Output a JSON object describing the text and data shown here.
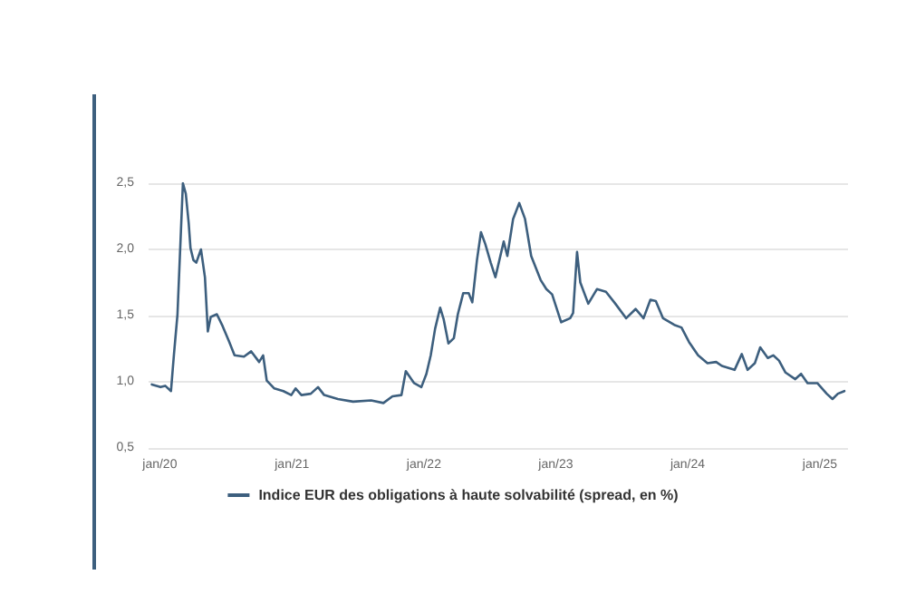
{
  "chart_data": {
    "type": "line",
    "xlim": [
      "2019-12-01",
      "2025-03-20"
    ],
    "ylim": [
      0.5,
      2.5
    ],
    "yticks": [
      {
        "value": 0.5,
        "label": "0,5"
      },
      {
        "value": 1,
        "label": "1,0"
      },
      {
        "value": 1.5,
        "label": "1,5"
      },
      {
        "value": 2,
        "label": "2,0"
      },
      {
        "value": 2.5,
        "label": "2,5"
      }
    ],
    "xticks": [
      {
        "value": "2020-01",
        "label": "jan/20"
      },
      {
        "value": "2021-01",
        "label": "jan/21"
      },
      {
        "value": "2022-01",
        "label": "jan/22"
      },
      {
        "value": "2023-01",
        "label": "jan/23"
      },
      {
        "value": "2024-01",
        "label": "jan/24"
      },
      {
        "value": "2025-01",
        "label": "jan/25"
      }
    ],
    "grid": "y",
    "legend": "bottom",
    "marker": "none",
    "line_style": "solid",
    "series": [
      {
        "name": "Indice EUR des obligations à haute solvabilité (spread, en %)",
        "color": "#3d5f7e",
        "x": [
          "2019-12-10",
          "2020-01-03",
          "2020-01-16",
          "2020-02-01",
          "2020-02-09",
          "2020-02-19",
          "2020-03-05",
          "2020-03-13",
          "2020-03-21",
          "2020-03-26",
          "2020-04-03",
          "2020-04-11",
          "2020-04-24",
          "2020-05-05",
          "2020-05-13",
          "2020-05-21",
          "2020-06-07",
          "2020-06-23",
          "2020-07-10",
          "2020-07-26",
          "2020-08-21",
          "2020-09-10",
          "2020-10-02",
          "2020-10-13",
          "2020-10-23",
          "2020-11-13",
          "2020-12-08",
          "2020-12-30",
          "2021-01-11",
          "2021-01-27",
          "2021-02-22",
          "2021-03-14",
          "2021-03-31",
          "2021-05-08",
          "2021-06-19",
          "2021-08-08",
          "2021-09-11",
          "2021-10-06",
          "2021-10-31",
          "2021-11-12",
          "2021-12-05",
          "2021-12-25",
          "2022-01-08",
          "2022-01-20",
          "2022-02-01",
          "2022-02-15",
          "2022-02-25",
          "2022-03-10",
          "2022-03-25",
          "2022-04-05",
          "2022-04-20",
          "2022-05-05",
          "2022-05-15",
          "2022-05-28",
          "2022-06-08",
          "2022-06-20",
          "2022-07-05",
          "2022-07-18",
          "2022-08-10",
          "2022-08-20",
          "2022-09-05",
          "2022-09-22",
          "2022-10-08",
          "2022-10-25",
          "2022-11-20",
          "2022-12-06",
          "2022-12-22",
          "2023-01-16",
          "2023-02-10",
          "2023-02-18",
          "2023-03-01",
          "2023-03-10",
          "2023-04-01",
          "2023-04-25",
          "2023-05-20",
          "2023-06-15",
          "2023-07-15",
          "2023-08-10",
          "2023-09-01",
          "2023-09-20",
          "2023-10-05",
          "2023-10-25",
          "2023-11-25",
          "2023-12-15",
          "2024-01-05",
          "2024-01-30",
          "2024-02-25",
          "2024-03-20",
          "2024-04-05",
          "2024-05-10",
          "2024-05-30",
          "2024-06-15",
          "2024-07-05",
          "2024-07-20",
          "2024-08-10",
          "2024-08-25",
          "2024-09-10",
          "2024-09-28",
          "2024-10-25",
          "2024-11-10",
          "2024-11-28",
          "2024-12-25",
          "2025-01-20",
          "2025-02-05",
          "2025-02-20",
          "2025-03-10"
        ],
        "values": [
          0.98,
          0.96,
          0.97,
          0.93,
          1.2,
          1.51,
          2.5,
          2.42,
          2.2,
          2.01,
          1.92,
          1.9,
          2.0,
          1.79,
          1.38,
          1.49,
          1.51,
          1.42,
          1.31,
          1.2,
          1.19,
          1.23,
          1.15,
          1.2,
          1.01,
          0.95,
          0.93,
          0.9,
          0.95,
          0.9,
          0.91,
          0.96,
          0.9,
          0.87,
          0.85,
          0.86,
          0.84,
          0.89,
          0.9,
          1.08,
          0.99,
          0.96,
          1.06,
          1.2,
          1.4,
          1.56,
          1.47,
          1.29,
          1.33,
          1.51,
          1.67,
          1.67,
          1.6,
          1.92,
          2.13,
          2.04,
          1.9,
          1.79,
          2.06,
          1.95,
          2.23,
          2.35,
          2.23,
          1.95,
          1.77,
          1.7,
          1.66,
          1.45,
          1.48,
          1.52,
          1.98,
          1.75,
          1.59,
          1.7,
          1.68,
          1.59,
          1.48,
          1.55,
          1.48,
          1.62,
          1.61,
          1.48,
          1.43,
          1.41,
          1.3,
          1.2,
          1.14,
          1.15,
          1.12,
          1.09,
          1.21,
          1.09,
          1.14,
          1.26,
          1.18,
          1.2,
          1.16,
          1.07,
          1.02,
          1.06,
          0.99,
          0.99,
          0.91,
          0.87,
          0.91,
          0.93
        ]
      }
    ]
  }
}
